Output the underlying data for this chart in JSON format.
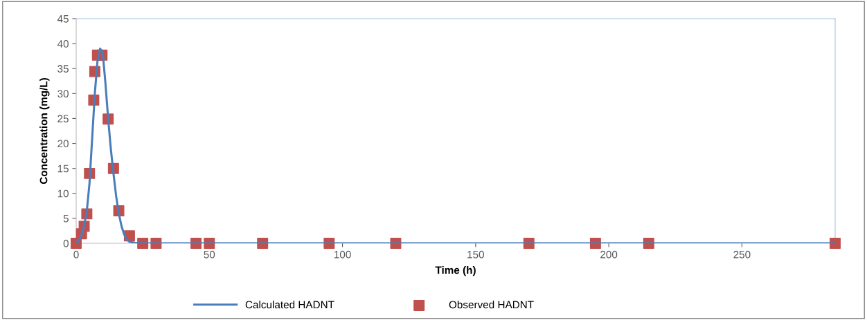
{
  "chart_data": {
    "type": "scatter",
    "xlabel": "Time (h)",
    "ylabel": "Concentration (mg/L)",
    "xlim": [
      0,
      285
    ],
    "xticks": [
      0,
      50,
      100,
      150,
      200,
      250
    ],
    "ylim": [
      0,
      45
    ],
    "yticks": [
      0,
      5,
      10,
      15,
      20,
      25,
      30,
      35,
      40,
      45
    ],
    "grid": false,
    "legend": "bottom",
    "series": [
      {
        "name": "Calculated HADNT",
        "type": "line",
        "color": "#4a7ebb",
        "marker": "none",
        "line_style": "solid",
        "x": [
          0,
          1,
          2,
          3,
          4,
          5,
          6,
          7,
          8,
          9,
          10,
          11,
          12,
          13,
          14,
          15,
          16,
          17,
          18,
          19,
          20,
          22,
          25,
          285
        ],
        "values": [
          0,
          0.5,
          1.8,
          3.6,
          6.5,
          12,
          21,
          30,
          36.5,
          39,
          38,
          32,
          25,
          19,
          14,
          9.5,
          6,
          3.5,
          1.8,
          0.8,
          0.3,
          0.1,
          0,
          0
        ]
      },
      {
        "name": "Observed HADNT",
        "color": "#c0504d",
        "marker": "square",
        "x": [
          0,
          2,
          3,
          4,
          5,
          6.6,
          7,
          8,
          9.7,
          12,
          14,
          16,
          20,
          25,
          30,
          45,
          50,
          70,
          95,
          120,
          170,
          195,
          215,
          285
        ],
        "values": [
          0,
          1.9,
          3.4,
          5.9,
          14,
          28.7,
          34.4,
          37.7,
          37.7,
          24.9,
          15,
          6.5,
          1.5,
          0,
          0,
          0,
          0,
          0,
          0,
          0,
          0,
          0,
          0,
          0
        ]
      }
    ]
  }
}
